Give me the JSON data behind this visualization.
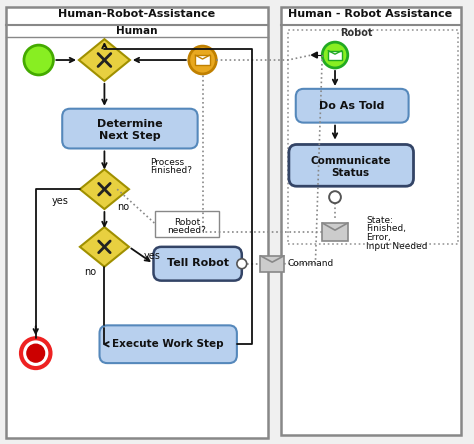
{
  "title_left": "Human-Robot-Assistance",
  "title_right": "Human - Robot Assistance",
  "lane_left_label": "Human",
  "lane_right_label": "Robot",
  "bg_color": "#f0f0f0",
  "box_fill": "#b8d0ee",
  "box_stroke": "#5588bb",
  "box_stroke2": "#334466",
  "diamond_fill": "#e8d040",
  "diamond_stroke": "#a09000",
  "start_green": "#88ee22",
  "end_red_outer": "#ee2222",
  "end_red_inner": "#cc0000",
  "msg_orange_bg": "#e8a820",
  "msg_orange_edge": "#c08000",
  "msg_green_bg": "#88ee22",
  "msg_green_edge": "#22aa22",
  "msg_gray_bg": "#cccccc",
  "msg_gray_edge": "#888888",
  "arrow_color": "#111111",
  "dashed_color": "#888888",
  "frame_color": "#888888",
  "text_color": "#111111"
}
